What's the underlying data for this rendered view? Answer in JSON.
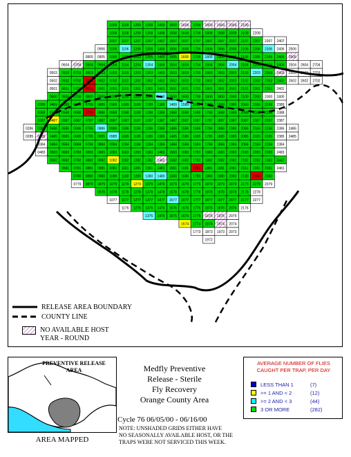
{
  "legend": {
    "release_boundary": "RELEASE AREA BOUNDARY",
    "county_line": "COUNTY LINE",
    "no_host_line1": "NO AVAILABLE HOST",
    "no_host_line2": "YEAR - ROUND"
  },
  "inset": {
    "label_line1": "PREVENTIVE RELEASE",
    "label_line2": "AREA",
    "caption": "AREA MAPPED"
  },
  "title": {
    "line1": "Medfly Preventive",
    "line2": "Release - Sterile",
    "line3": "Fly Recovery",
    "line4": "Orange County Area",
    "cycle": "Cycle 76    06/05/00 - 06/16/00"
  },
  "note": {
    "line1": "NOTE: UNSHADED GRIDS EITHER HAVE",
    "line2": "NO SEASONALLY AVAILABLE HOST, OR THE",
    "line3": "TRAPS WERE NOT SERVICED THIS WEEK."
  },
  "key": {
    "title_line1": "AVERAGE NUMBER OF FLIES",
    "title_line2": "CAUGHT PER TRAP, PER DAY",
    "items": [
      {
        "label": "LESS THAN 1",
        "count": "(7)",
        "color": "#0000c8"
      },
      {
        "label": ">= 1 AND < 2",
        "count": "(12)",
        "color": "#ffff00"
      },
      {
        "label": ">= 2 AND < 3",
        "count": "(44)",
        "color": "#00ffff"
      },
      {
        "label": "3 OR MORE",
        "count": "(282)",
        "color": "#00dc00"
      }
    ]
  },
  "map_colors": {
    "green": "#00dc00",
    "cyan": "#66ffff",
    "yellow": "#ffff00",
    "red": "#e00000",
    "blue": "#0000c8",
    "unshaded": "#ffffff",
    "hatch": "#c060c0"
  },
  "grid_rows": [
    {
      "cells": [
        "1009",
        "1109",
        "1209",
        "1309",
        "1409",
        "1509",
        "1609",
        "1709",
        "1809",
        "1909",
        "2009",
        "2109"
      ],
      "colors": "GGGGGGHGHHHH"
    },
    {
      "cells": [
        "1008",
        "1108",
        "1208",
        "1308",
        "1408",
        "1508",
        "1608",
        "1708",
        "1808",
        "1908",
        "2008",
        "2108",
        "2208"
      ],
      "colors": "GGGGGGGGGGGGW"
    },
    {
      "cells": [
        "1007",
        "1107",
        "1207",
        "1307",
        "1407",
        "1507",
        "1607",
        "1707",
        "1807",
        "1907",
        "2007",
        "2107",
        "2207",
        "2307",
        "2407"
      ],
      "colors": "GGGGGGGGGGGGGWW"
    },
    {
      "cells": [
        "0906",
        "1006",
        "1106",
        "1206",
        "1306",
        "1406",
        "1506",
        "1606",
        "1706",
        "1806",
        "1906",
        "2006",
        "2106",
        "2206",
        "2306",
        "2406",
        "2506"
      ],
      "colors": "WGCGGGGGGGGGGGCWW"
    },
    {
      "cells": [
        "0805",
        "0905",
        "1005",
        "1105",
        "1205",
        "1305",
        "1405",
        "1505",
        "1605",
        "1705",
        "1805",
        "1905",
        "2005",
        "2105",
        "2205",
        "2305",
        "2405",
        "2505"
      ],
      "colors": "WWGGGGGGYGCGGGGGGH"
    },
    {
      "cells": [
        "0604",
        "0704",
        "0804",
        "0904",
        "1004",
        "1104",
        "1204",
        "1304",
        "1404",
        "1504",
        "1604",
        "1704",
        "1804",
        "1904",
        "2004",
        "2104",
        "2204",
        "2304",
        "2404",
        "2504",
        "2604",
        "2704"
      ],
      "colors": "WHGGGGGCGGGGGGCGGGGWWW"
    },
    {
      "cells": [
        "0503",
        "0603",
        "0703",
        "0803",
        "0903",
        "1003",
        "1103",
        "1203",
        "1303",
        "1403",
        "1503",
        "1603",
        "1703",
        "1803",
        "1903",
        "2003",
        "2103",
        "2203",
        "2303",
        "2403",
        "2503",
        "2603",
        "2703"
      ],
      "colors": "WGGGGGGGGGGGGGGGGCGHWWW"
    },
    {
      "cells": [
        "0502",
        "0602",
        "0702",
        "0802",
        "0902",
        "1002",
        "1102",
        "1202",
        "1302",
        "1402",
        "1502",
        "1602",
        "1702",
        "1802",
        "1902",
        "2002",
        "2102",
        "2202",
        "2302",
        "2402",
        "2502",
        "2602",
        "2702"
      ],
      "colors": "WGGRGGGGGGGGGGGGGGGGWWW"
    },
    {
      "cells": [
        "0501",
        "0601",
        "0701",
        "0801",
        "0901",
        "1001",
        "1101",
        "1201",
        "1301",
        "1401",
        "1501",
        "1601",
        "1701",
        "1801",
        "1901",
        "2001",
        "2101",
        "2201",
        "2301",
        "2401"
      ],
      "colors": "WGGRGGGGGGGGGGGGGGGW"
    },
    {
      "cells": [
        "0500",
        "0600",
        "0700",
        "0800",
        "0900",
        "1000",
        "1100",
        "1200",
        "1300",
        "1400",
        "1500",
        "1600",
        "1700",
        "1800",
        "1900",
        "2000",
        "2100",
        "2200",
        "2300",
        "2400"
      ],
      "colors": "GGGGGGGGGCGGGGGGGGWW"
    },
    {
      "cells": [
        "0389",
        "0489",
        "0589",
        "0689",
        "0789",
        "0889",
        "0989",
        "1089",
        "1189",
        "1289",
        "1389",
        "1489",
        "1589",
        "1689",
        "1789",
        "1889",
        "1989",
        "2089",
        "2189",
        "2289",
        "2389"
      ],
      "colors": "GGGGGGGGGGGCCGGGGGGGW"
    },
    {
      "cells": [
        "0388",
        "0488",
        "0588",
        "0688",
        "0788",
        "0888",
        "0988",
        "1088",
        "1188",
        "1288",
        "1388",
        "1488",
        "1588",
        "1688",
        "1788",
        "1888",
        "1988",
        "2088",
        "2188",
        "2288",
        "2388"
      ],
      "colors": "GGGGRGGGGGGGGGGGGGGGW"
    },
    {
      "cells": [
        "0387",
        "0487",
        "0587",
        "0687",
        "0787",
        "0887",
        "0987",
        "1087",
        "1187",
        "1287",
        "1387",
        "1487",
        "1587",
        "1687",
        "1787",
        "1887",
        "1987",
        "2087",
        "2187",
        "2287",
        "2387"
      ],
      "colors": "GYGGGGGGGGGGGGGGGGGGW"
    },
    {
      "cells": [
        "0286",
        "0386",
        "0486",
        "0586",
        "0686",
        "0786",
        "0886",
        "0986",
        "1086",
        "1186",
        "1286",
        "1386",
        "1486",
        "1586",
        "1686",
        "1786",
        "1886",
        "1986",
        "2086",
        "2186",
        "2286",
        "2386",
        "2486"
      ],
      "colors": "WGGGGGCGGGGGGGGGGGGGGWW"
    },
    {
      "cells": [
        "0285",
        "0385",
        "0485",
        "0585",
        "0685",
        "0785",
        "0885",
        "0985",
        "1085",
        "1185",
        "1285",
        "1385",
        "1485",
        "1585",
        "1685",
        "1785",
        "1885",
        "1985",
        "2085",
        "2185",
        "2285",
        "2385",
        "2485"
      ],
      "colors": "WHGGGGGCGGGGGGGGGGGGGWW"
    },
    {
      "cells": [
        "0384",
        "0484",
        "0584",
        "0684",
        "0784",
        "0884",
        "0984",
        "1084",
        "1184",
        "1284",
        "1384",
        "1484",
        "1584",
        "1684",
        "1784",
        "1884",
        "1984",
        "2084",
        "2184",
        "2284",
        "2384"
      ],
      "colors": "WGGGGGGGGGGGGGGGGGGGW"
    },
    {
      "cells": [
        "0483",
        "0583",
        "0683",
        "0783",
        "0883",
        "0983",
        "1083",
        "1183",
        "1283",
        "1383",
        "1483",
        "1583",
        "1683",
        "1783",
        "1883",
        "1983",
        "2083",
        "2183",
        "2283",
        "2383",
        "2483"
      ],
      "colors": "WGGGGGGGGGGGGGGGGGGGW"
    },
    {
      "cells": [
        "0582",
        "0682",
        "0782",
        "0882",
        "0982",
        "1082",
        "1182",
        "1282",
        "1382",
        "1482",
        "1582",
        "1682",
        "1782",
        "1882",
        "1982",
        "2082",
        "2182",
        "2282",
        "2382",
        "2482"
      ],
      "colors": "GGGGGYGGGHGGGGGGGGGG"
    },
    {
      "cells": [
        "0681",
        "0781",
        "0881",
        "0981",
        "1081",
        "1181",
        "1281",
        "1381",
        "1481",
        "1581",
        "1681",
        "1781",
        "1881",
        "1981",
        "2081",
        "2181",
        "2281",
        "2381",
        "2481"
      ],
      "colors": "GGGGGGGGGGGRGGGGGGW"
    },
    {
      "cells": [
        "0780",
        "0880",
        "0980",
        "1080",
        "1180",
        "1280",
        "1380",
        "1480",
        "1580",
        "1680",
        "1780",
        "1880",
        "1980",
        "2080",
        "2180",
        "2280",
        "2380"
      ],
      "colors": "GGGGGGCCGGGGGGGRG"
    },
    {
      "cells": [
        "0779",
        "0879",
        "0979",
        "1079",
        "1179",
        "1279",
        "1379",
        "1479",
        "1579",
        "1679",
        "1779",
        "1879",
        "1979",
        "2079",
        "2179",
        "2279",
        "2379"
      ],
      "colors": "WGGGGYGGGGGGGGGGW"
    },
    {
      "cells": [
        "0978",
        "1078",
        "1178",
        "1278",
        "1378",
        "1478",
        "1578",
        "1678",
        "1778",
        "1878",
        "1978",
        "2078",
        "2178",
        "2278"
      ],
      "colors": "GGGGGGGGGGGGGW"
    },
    {
      "cells": [
        "1077",
        "1177",
        "1277",
        "1377",
        "1477",
        "1577",
        "1677",
        "1777",
        "1877",
        "1977",
        "2077",
        "2177",
        "2277"
      ],
      "colors": "WGGGGCGGGGGGW"
    },
    {
      "cells": [
        "1176",
        "1276",
        "1376",
        "1476",
        "1576",
        "1676",
        "1776",
        "1876",
        "1976",
        "2076",
        "2176"
      ],
      "colors": "WGGGGGGGGGW"
    },
    {
      "cells": [
        "1375",
        "1475",
        "1575",
        "1675",
        "1775",
        "1875",
        "1975",
        "2075"
      ],
      "colors": "CGGGGHHW"
    },
    {
      "cells": [
        "1674",
        "1774",
        "1874",
        "1974",
        "2074"
      ],
      "colors": "YGGHW"
    },
    {
      "cells": [
        "1773",
        "1873",
        "1973",
        "2073"
      ],
      "colors": "WWWW"
    },
    {
      "cells": [
        "1972"
      ],
      "colors": "W"
    }
  ]
}
